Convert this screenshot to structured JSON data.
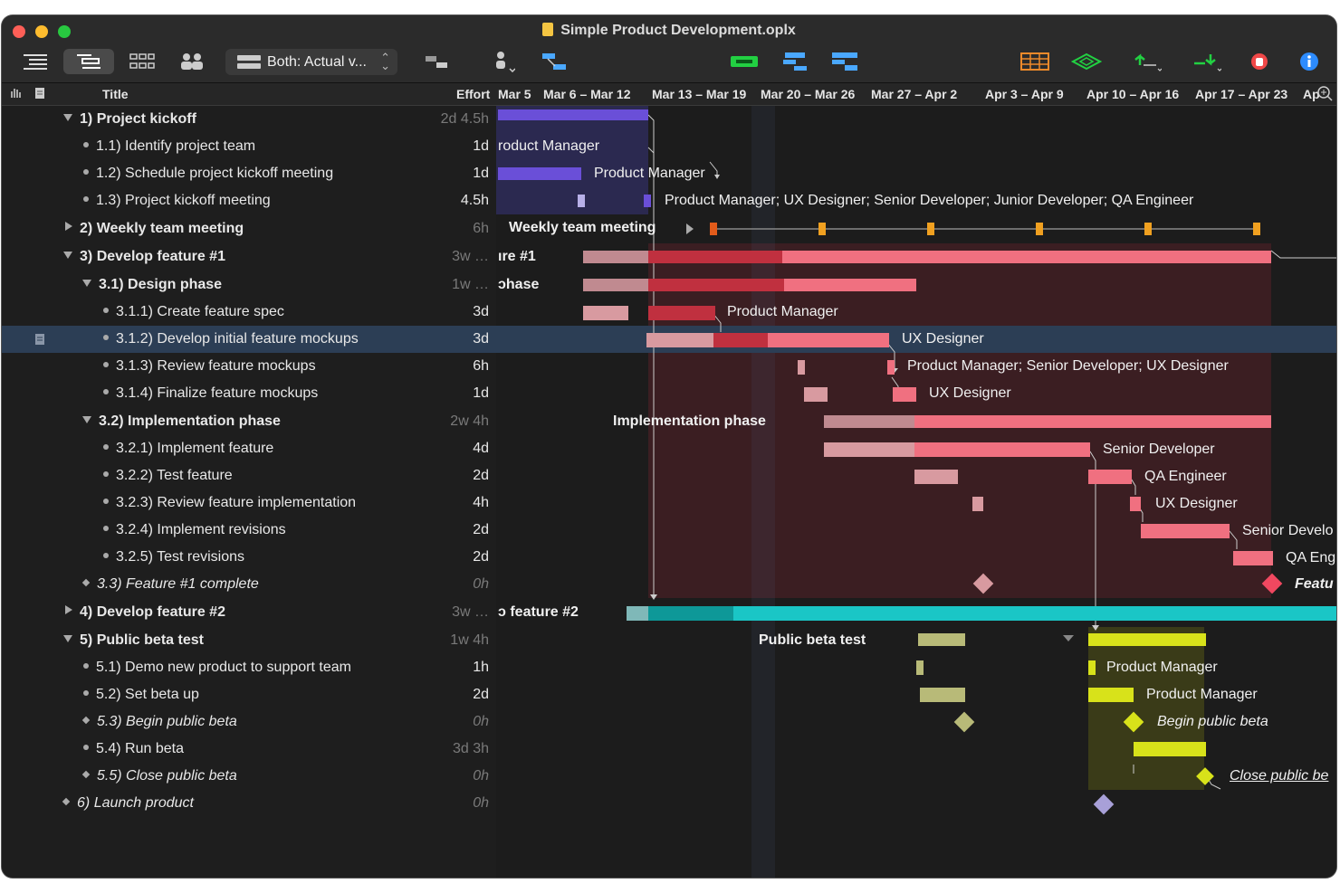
{
  "window": {
    "title": "Simple Product Development.oplx"
  },
  "toolbar": {
    "view_menu": "Both: Actual v..."
  },
  "header": {
    "title": "Title",
    "effort": "Effort",
    "dates": [
      "Mar 5",
      "Mar 6 – Mar 12",
      "Mar 13 – Mar 19",
      "Mar 20 – Mar 26",
      "Mar 27 – Apr 2",
      "Apr 3 – Apr 9",
      "Apr 10 – Apr 16",
      "Apr 17 – Apr 23",
      "Ap"
    ]
  },
  "rows": [
    {
      "num": "1)",
      "title": "Project kickoff",
      "effort": "2d 4.5h"
    },
    {
      "num": "1.1)",
      "title": "Identify project team",
      "effort": "1d"
    },
    {
      "num": "1.2)",
      "title": "Schedule project kickoff meeting",
      "effort": "1d"
    },
    {
      "num": "1.3)",
      "title": "Project kickoff meeting",
      "effort": "4.5h"
    },
    {
      "num": "2)",
      "title": "Weekly team meeting",
      "effort": "6h"
    },
    {
      "num": "3)",
      "title": "Develop feature #1",
      "effort": "3w …"
    },
    {
      "num": "3.1)",
      "title": "Design phase",
      "effort": "1w …"
    },
    {
      "num": "3.1.1)",
      "title": "Create feature spec",
      "effort": "3d"
    },
    {
      "num": "3.1.2)",
      "title": "Develop initial feature mockups",
      "effort": "3d"
    },
    {
      "num": "3.1.3)",
      "title": "Review feature mockups",
      "effort": "6h"
    },
    {
      "num": "3.1.4)",
      "title": "Finalize feature mockups",
      "effort": "1d"
    },
    {
      "num": "3.2)",
      "title": "Implementation phase",
      "effort": "2w 4h"
    },
    {
      "num": "3.2.1)",
      "title": "Implement feature",
      "effort": "4d"
    },
    {
      "num": "3.2.2)",
      "title": "Test feature",
      "effort": "2d"
    },
    {
      "num": "3.2.3)",
      "title": "Review feature implementation",
      "effort": "4h"
    },
    {
      "num": "3.2.4)",
      "title": "Implement revisions",
      "effort": "2d"
    },
    {
      "num": "3.2.5)",
      "title": "Test revisions",
      "effort": "2d"
    },
    {
      "num": "3.3)",
      "title": "Feature #1 complete",
      "effort": "0h"
    },
    {
      "num": "4)",
      "title": "Develop feature #2",
      "effort": "3w …"
    },
    {
      "num": "5)",
      "title": "Public beta test",
      "effort": "1w 4h"
    },
    {
      "num": "5.1)",
      "title": "Demo new product to support team",
      "effort": "1h"
    },
    {
      "num": "5.2)",
      "title": "Set beta up",
      "effort": "2d"
    },
    {
      "num": "5.3)",
      "title": "Begin public beta",
      "effort": "0h"
    },
    {
      "num": "5.4)",
      "title": "Run beta",
      "effort": "3d 3h"
    },
    {
      "num": "5.5)",
      "title": "Close public beta",
      "effort": "0h"
    },
    {
      "num": "6)",
      "title": "Launch product",
      "effort": "0h"
    }
  ],
  "gantt_labels": {
    "r1": "roduct Manager",
    "r2": "Product Manager",
    "r3": "Product Manager; UX Designer; Senior Developer; Junior Developer; QA Engineer",
    "r4": "Weekly team meeting",
    "r5": "ıre #1",
    "r6": "ɔhase",
    "r7": "Product Manager",
    "r8": "UX Designer",
    "r9": "Product Manager; Senior Developer; UX Designer",
    "r10": "UX Designer",
    "r11": "Implementation phase",
    "r12": "Senior Developer",
    "r13": "QA Engineer",
    "r14": "UX Designer",
    "r15": "Senior Develo",
    "r16": "QA Eng",
    "r17": "Featu",
    "r18": "ɔ feature #2",
    "r19": "Public beta test",
    "r20": "Product Manager",
    "r21": "Product Manager",
    "r22": "Begin public beta",
    "r24": "Close public be"
  },
  "colors": {
    "kickoff": "#6a4fd8",
    "feature1": "#f07080",
    "feature1_dark": "#c0303f",
    "feature2": "#1ac6c6",
    "beta": "#d8e21a",
    "milestone": "#f0a020"
  }
}
